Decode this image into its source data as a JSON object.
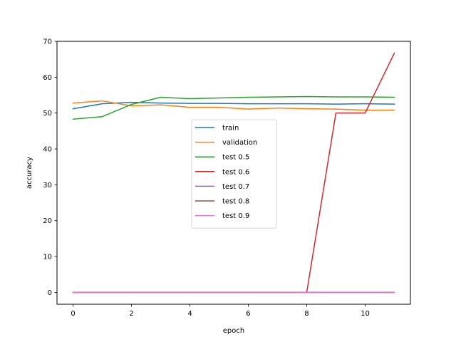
{
  "chart_data": {
    "type": "line",
    "title": "",
    "xlabel": "epoch",
    "ylabel": "accuracy",
    "xlim": [
      -0.55,
      11.55
    ],
    "ylim": [
      -3.3,
      70
    ],
    "xticks": [
      0,
      2,
      4,
      6,
      8,
      10
    ],
    "yticks": [
      0,
      10,
      20,
      30,
      40,
      50,
      60,
      70
    ],
    "grid": false,
    "legend_position": "center",
    "x": [
      0,
      1,
      2,
      3,
      4,
      5,
      6,
      7,
      8,
      9,
      10,
      11
    ],
    "series": [
      {
        "name": "train",
        "color": "#1f77b4",
        "values": [
          51.2,
          52.6,
          53.0,
          52.8,
          52.7,
          52.7,
          52.6,
          52.6,
          52.6,
          52.5,
          52.6,
          52.5
        ]
      },
      {
        "name": "validation",
        "color": "#ff7f0e",
        "values": [
          52.8,
          53.4,
          52.0,
          52.3,
          51.6,
          51.6,
          51.1,
          51.4,
          51.2,
          51.1,
          50.8,
          50.8
        ]
      },
      {
        "name": "test 0.5",
        "color": "#2ca02c",
        "values": [
          48.3,
          49.0,
          52.4,
          54.4,
          54.0,
          54.2,
          54.4,
          54.5,
          54.6,
          54.5,
          54.5,
          54.4
        ]
      },
      {
        "name": "test 0.6",
        "color": "#d62728",
        "values": [
          0,
          0,
          0,
          0,
          0,
          0,
          0,
          0,
          0,
          50.0,
          50.0,
          66.7
        ]
      },
      {
        "name": "test 0.7",
        "color": "#9467bd",
        "values": [
          0,
          0,
          0,
          0,
          0,
          0,
          0,
          0,
          0,
          0,
          0,
          0
        ]
      },
      {
        "name": "test 0.8",
        "color": "#8c564b",
        "values": [
          0,
          0,
          0,
          0,
          0,
          0,
          0,
          0,
          0,
          0,
          0,
          0
        ]
      },
      {
        "name": "test 0.9",
        "color": "#e377c2",
        "values": [
          0,
          0,
          0,
          0,
          0,
          0,
          0,
          0,
          0,
          0,
          0,
          0
        ]
      }
    ]
  }
}
